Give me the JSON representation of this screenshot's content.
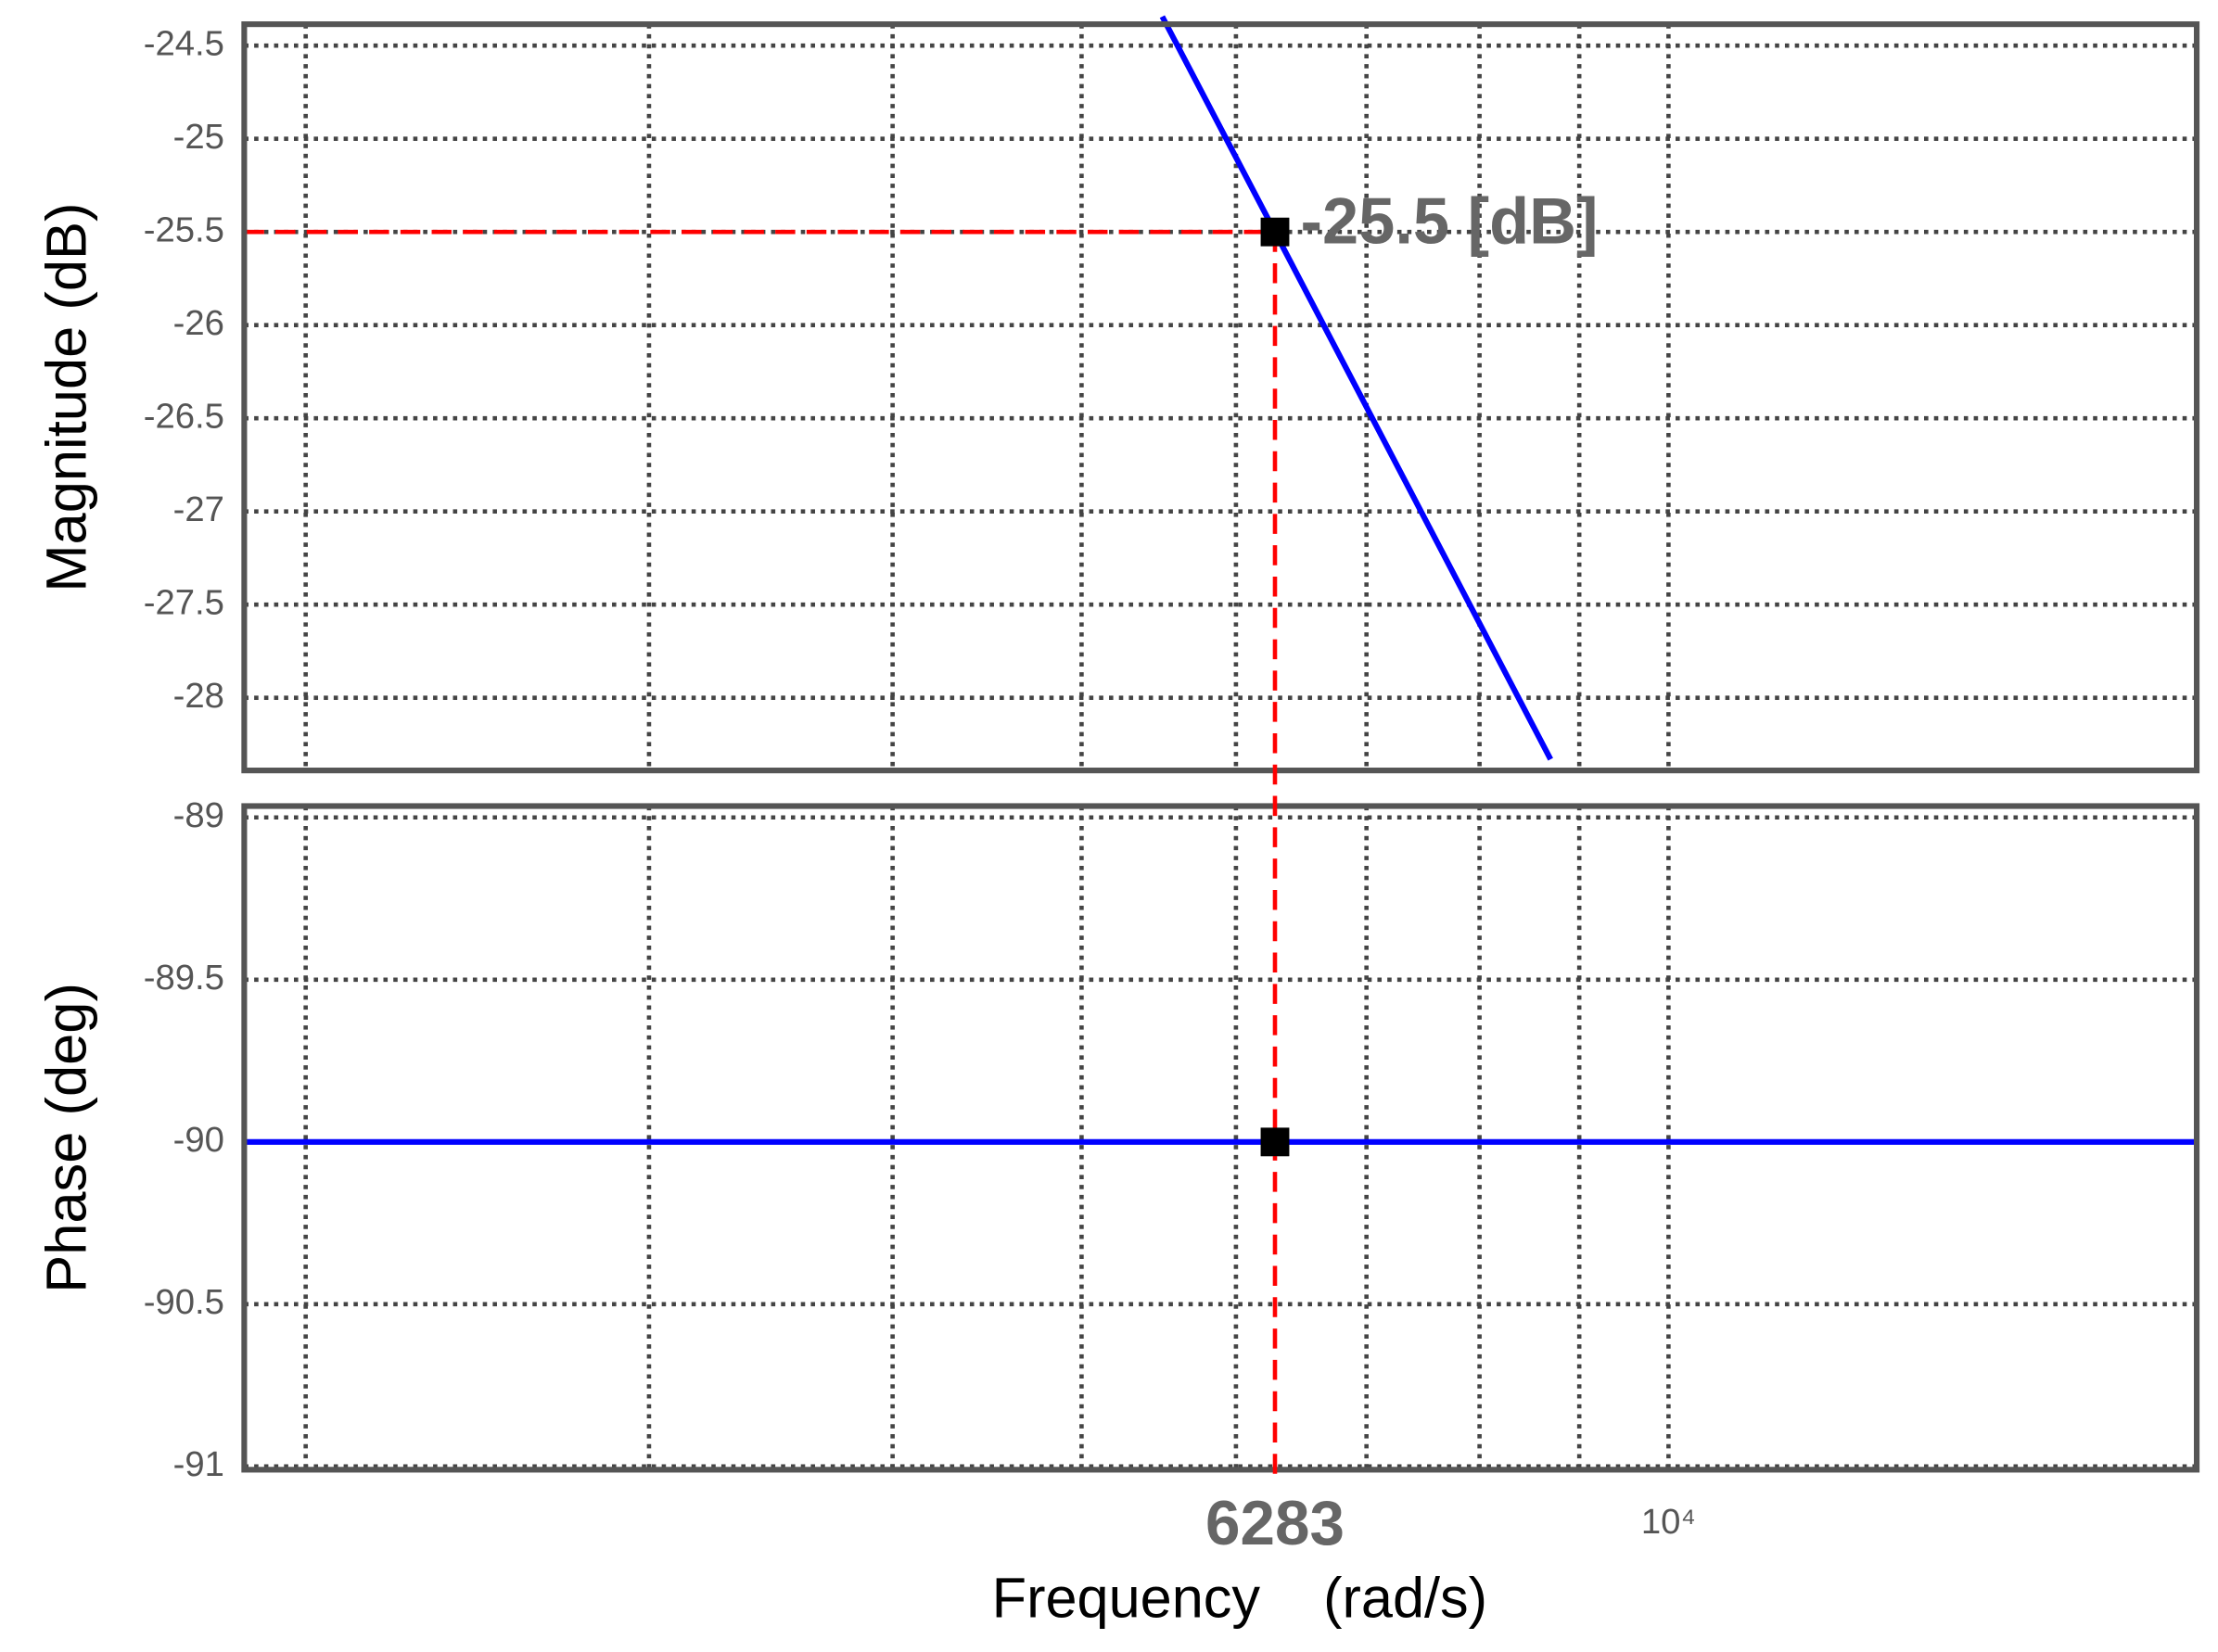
{
  "chart_data": [
    {
      "type": "line",
      "ylabel": "Magnitude (dB)",
      "log_x": true,
      "grid": true,
      "xlim": [
        1860,
        18660
      ],
      "ylim": [
        -28.39,
        -24.385
      ],
      "yticks": [
        -24.5,
        -25,
        -25.5,
        -26,
        -26.5,
        -27,
        -27.5,
        -28
      ],
      "xgrid": [
        2000,
        3000,
        4000,
        5000,
        6000,
        7000,
        8000,
        9000,
        10000
      ],
      "series": [
        {
          "color": "#0000ff",
          "x": [
            5500,
            6283,
            8700
          ],
          "values": [
            -24.344,
            -25.5,
            -28.33
          ]
        }
      ],
      "marker": {
        "x": 6283,
        "y": -25.5,
        "label": "-25.5 [dB]",
        "color": "#ff0000"
      }
    },
    {
      "type": "line",
      "ylabel": "Phase (deg)",
      "xlabel": "Frequency    (rad/s)",
      "log_x": true,
      "grid": true,
      "xlim": [
        1860,
        18660
      ],
      "ylim": [
        -91.01,
        -88.965
      ],
      "yticks": [
        -89,
        -89.5,
        -90,
        -90.5,
        -91
      ],
      "xgrid": [
        2000,
        3000,
        4000,
        5000,
        6000,
        7000,
        8000,
        9000,
        10000
      ],
      "xticks": [
        {
          "value": 10000,
          "label": "10⁴"
        }
      ],
      "series": [
        {
          "color": "#0000ff",
          "x": [
            1860,
            18660
          ],
          "values": [
            -90,
            -90
          ]
        }
      ],
      "marker": {
        "x": 6283,
        "y": -90,
        "color": "#ff0000"
      }
    }
  ]
}
